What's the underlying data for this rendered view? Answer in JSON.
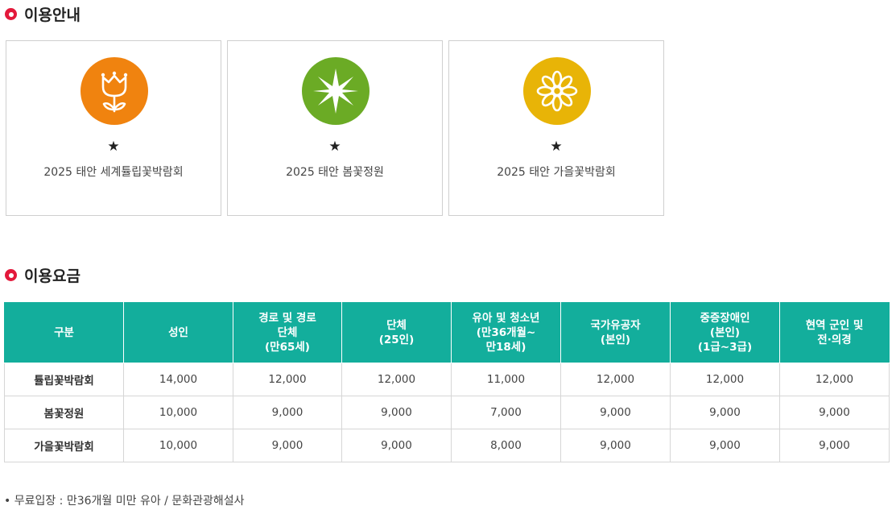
{
  "info_section": {
    "title": "이용안내"
  },
  "cards": [
    {
      "icon": "tulip-icon",
      "color": "#f0830f",
      "star": "★",
      "name": "2025 태안 세계튤립꽃박람회"
    },
    {
      "icon": "star-sparkle-icon",
      "color": "#6bab25",
      "star": "★",
      "name": "2025 태안 봄꽃정원"
    },
    {
      "icon": "daisy-icon",
      "color": "#e8b407",
      "star": "★",
      "name": "2025 태안 가을꽃박람회"
    }
  ],
  "fee_section": {
    "title": "이용요금"
  },
  "fee_table": {
    "headers": [
      "구분",
      "성인",
      "경로 및 경로\n단체\n(만65세)",
      "단체\n(25인)",
      "유아 및 청소년\n(만36개월~\n만18세)",
      "국가유공자\n(본인)",
      "중증장애인\n(본인)\n(1급~3급)",
      "현역 군인 및\n전·의경"
    ],
    "rows": [
      [
        "튤립꽃박람회",
        "14,000",
        "12,000",
        "12,000",
        "11,000",
        "12,000",
        "12,000",
        "12,000"
      ],
      [
        "봄꽃정원",
        "10,000",
        "9,000",
        "9,000",
        "7,000",
        "9,000",
        "9,000",
        "9,000"
      ],
      [
        "가을꽃박람회",
        "10,000",
        "9,000",
        "9,000",
        "8,000",
        "9,000",
        "9,000",
        "9,000"
      ]
    ]
  },
  "note": "• 무료입장 : 만36개월 미만 유아 / 문화관광해설사",
  "colors": {
    "accent_red": "#e3193b",
    "table_header": "#13ae9c"
  }
}
